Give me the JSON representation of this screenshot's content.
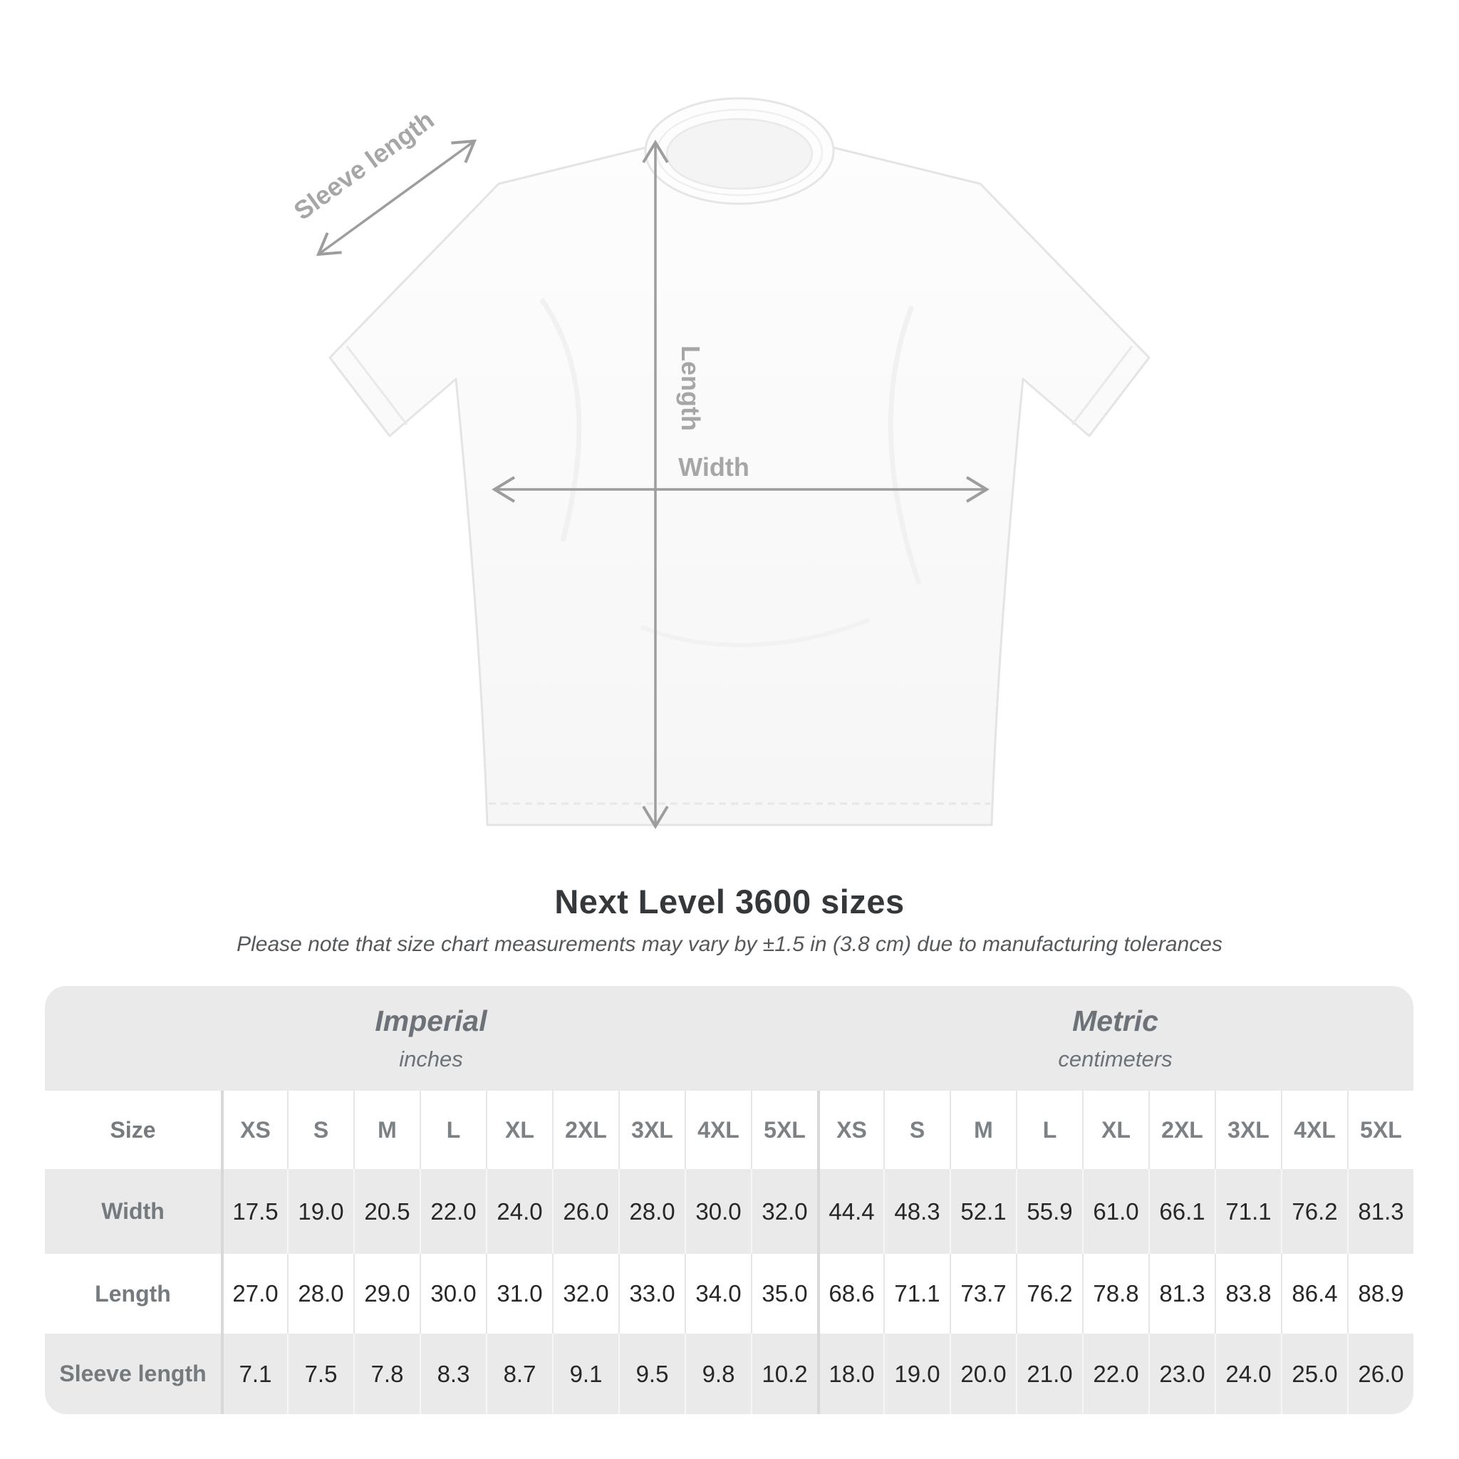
{
  "diagram": {
    "sleeve_label": "Sleeve length",
    "length_label": "Length",
    "width_label": "Width",
    "arrow_color": "#9d9d9d",
    "label_color": "#a6a6a6",
    "shirt_fill": "#fcfcfc",
    "shirt_outline": "#e4e4e4"
  },
  "title": "Next Level 3600 sizes",
  "subtitle": "Please note that size chart measurements may vary by ±1.5 in (3.8 cm) due to manufacturing tolerances",
  "table": {
    "imperial": {
      "label": "Imperial",
      "unit": "inches"
    },
    "metric": {
      "label": "Metric",
      "unit": "centimeters"
    },
    "size_header": "Size",
    "sizes": [
      "XS",
      "S",
      "M",
      "L",
      "XL",
      "2XL",
      "3XL",
      "4XL",
      "5XL"
    ],
    "rows": [
      {
        "label": "Width",
        "imperial": [
          "17.5",
          "19.0",
          "20.5",
          "22.0",
          "24.0",
          "26.0",
          "28.0",
          "30.0",
          "32.0"
        ],
        "metric": [
          "44.4",
          "48.3",
          "52.1",
          "55.9",
          "61.0",
          "66.1",
          "71.1",
          "76.2",
          "81.3"
        ]
      },
      {
        "label": "Length",
        "imperial": [
          "27.0",
          "28.0",
          "29.0",
          "30.0",
          "31.0",
          "32.0",
          "33.0",
          "34.0",
          "35.0"
        ],
        "metric": [
          "68.6",
          "71.1",
          "73.7",
          "76.2",
          "78.8",
          "81.3",
          "83.8",
          "86.4",
          "88.9"
        ]
      },
      {
        "label": "Sleeve length",
        "imperial": [
          "7.1",
          "7.5",
          "7.8",
          "8.3",
          "8.7",
          "9.1",
          "9.5",
          "9.8",
          "10.2"
        ],
        "metric": [
          "18.0",
          "19.0",
          "20.0",
          "21.0",
          "22.0",
          "23.0",
          "24.0",
          "25.0",
          "26.0"
        ]
      }
    ],
    "colors": {
      "row_gray": "#eaeaea",
      "header_text": "#7b8185",
      "value_text": "#272727",
      "divider_major": "#d8d8d8"
    }
  }
}
